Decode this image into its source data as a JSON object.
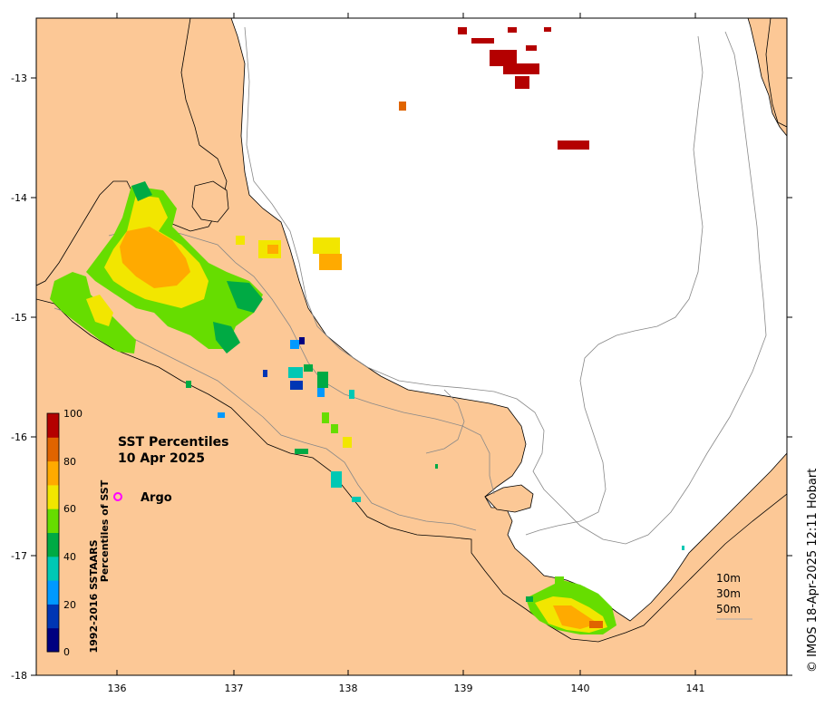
{
  "title": {
    "line1": "SST Percentiles",
    "line2": "10 Apr 2025"
  },
  "legend": {
    "argo_label": "Argo",
    "argo_color": "#ff00ff",
    "depth_labels": [
      "10m",
      "30m",
      "50m"
    ]
  },
  "colorbar": {
    "title_line1": "1992-2016 SSTAARS",
    "title_line2": "Percentiles of SST",
    "ticks": [
      "0",
      "20",
      "40",
      "60",
      "80",
      "100"
    ],
    "colors": [
      "#000080",
      "#0036b4",
      "#0099ff",
      "#00c8b4",
      "#00aa44",
      "#66dd00",
      "#f2e600",
      "#ffaa00",
      "#e06400",
      "#b40000"
    ]
  },
  "axes": {
    "x_ticks": [
      "136",
      "137",
      "138",
      "139",
      "140",
      "141"
    ],
    "y_ticks": [
      "-13",
      "-14",
      "-15",
      "-16",
      "-17",
      "-18"
    ]
  },
  "credit": "© IMOS 18-Apr-2025 12:11 Hobart",
  "colors": {
    "land": "#fcc896",
    "ocean": "#ffffff",
    "contour": "#888888"
  }
}
